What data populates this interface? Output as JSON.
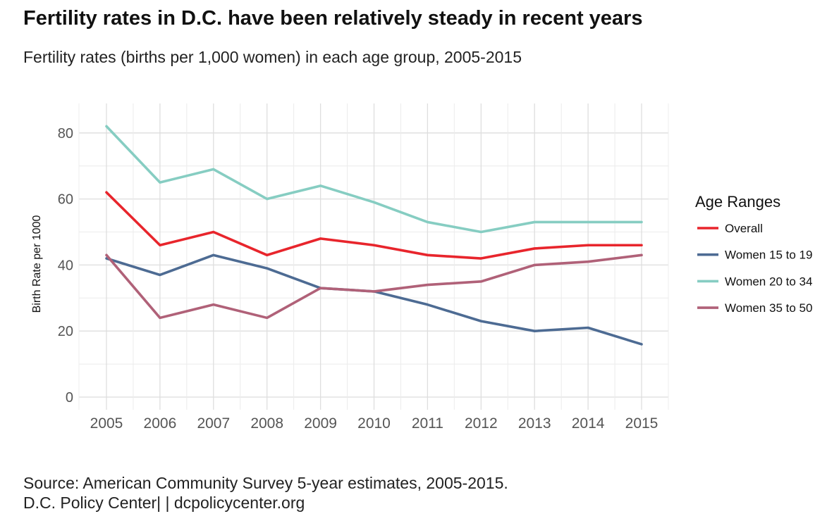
{
  "header": {
    "title": "Fertility rates in D.C. have been relatively steady in recent years",
    "subtitle": "Fertility rates (births per 1,000 women) in each age group, 2005-2015"
  },
  "footer": {
    "source_line": "Source: American Community Survey 5-year estimates, 2005-2015.",
    "credit_line": "D.C. Policy Center|  |  dcpolicycenter.org"
  },
  "chart_data": {
    "type": "line",
    "title": "Fertility rates in D.C. have been relatively steady in recent years",
    "subtitle": "Fertility rates (births per 1,000 women) in each age group, 2005-2015",
    "xlabel": "",
    "ylabel": "Birth Rate per 1000",
    "x": [
      2005,
      2006,
      2007,
      2008,
      2009,
      2010,
      2011,
      2012,
      2013,
      2014,
      2015
    ],
    "ylim": [
      0,
      88
    ],
    "yticks": [
      0,
      20,
      40,
      60,
      80
    ],
    "grid": true,
    "legend": {
      "title": "Age Ranges",
      "position": "right"
    },
    "series": [
      {
        "name": "Overall",
        "color": "#e8252c",
        "values": [
          62,
          46,
          50,
          43,
          48,
          46,
          43,
          42,
          45,
          46,
          46
        ]
      },
      {
        "name": "Women 15 to 19",
        "color": "#4d6b93",
        "values": [
          42,
          37,
          43,
          39,
          33,
          32,
          28,
          23,
          20,
          21,
          16
        ]
      },
      {
        "name": "Women 20 to 34",
        "color": "#86cdc2",
        "values": [
          82,
          65,
          69,
          60,
          64,
          59,
          53,
          50,
          53,
          53,
          53
        ]
      },
      {
        "name": "Women 35 to 50",
        "color": "#b06178",
        "values": [
          43,
          24,
          28,
          24,
          33,
          32,
          34,
          35,
          40,
          41,
          43
        ]
      }
    ]
  }
}
